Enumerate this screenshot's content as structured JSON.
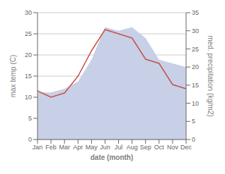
{
  "chart_data": {
    "type": "line",
    "categories": [
      "Jan",
      "Feb",
      "Mar",
      "Apr",
      "May",
      "Jun",
      "Jul",
      "Aug",
      "Sep",
      "Oct",
      "Nov",
      "Dec"
    ],
    "series": [
      {
        "type": "area",
        "axis": "y2",
        "color": "#c8d0e8",
        "values": [
          13,
          13,
          14,
          16,
          22,
          31,
          30,
          31,
          28,
          22,
          21,
          20
        ]
      },
      {
        "type": "line",
        "color": "#c8534a",
        "values": [
          11.5,
          10,
          11,
          15,
          21,
          26,
          25,
          24,
          19,
          18,
          13,
          12
        ]
      }
    ],
    "xlabel": "date (month)",
    "ylabel": "max temp (C)",
    "y2label": "med. precipitation (kg/m2)",
    "ylim": [
      0,
      30
    ],
    "yticks": [
      0,
      5,
      10,
      15,
      20,
      25,
      30
    ],
    "y2lim": [
      0,
      35
    ],
    "y2ticks": [
      0,
      5,
      10,
      15,
      20,
      25,
      30,
      35
    ],
    "grid": true
  }
}
